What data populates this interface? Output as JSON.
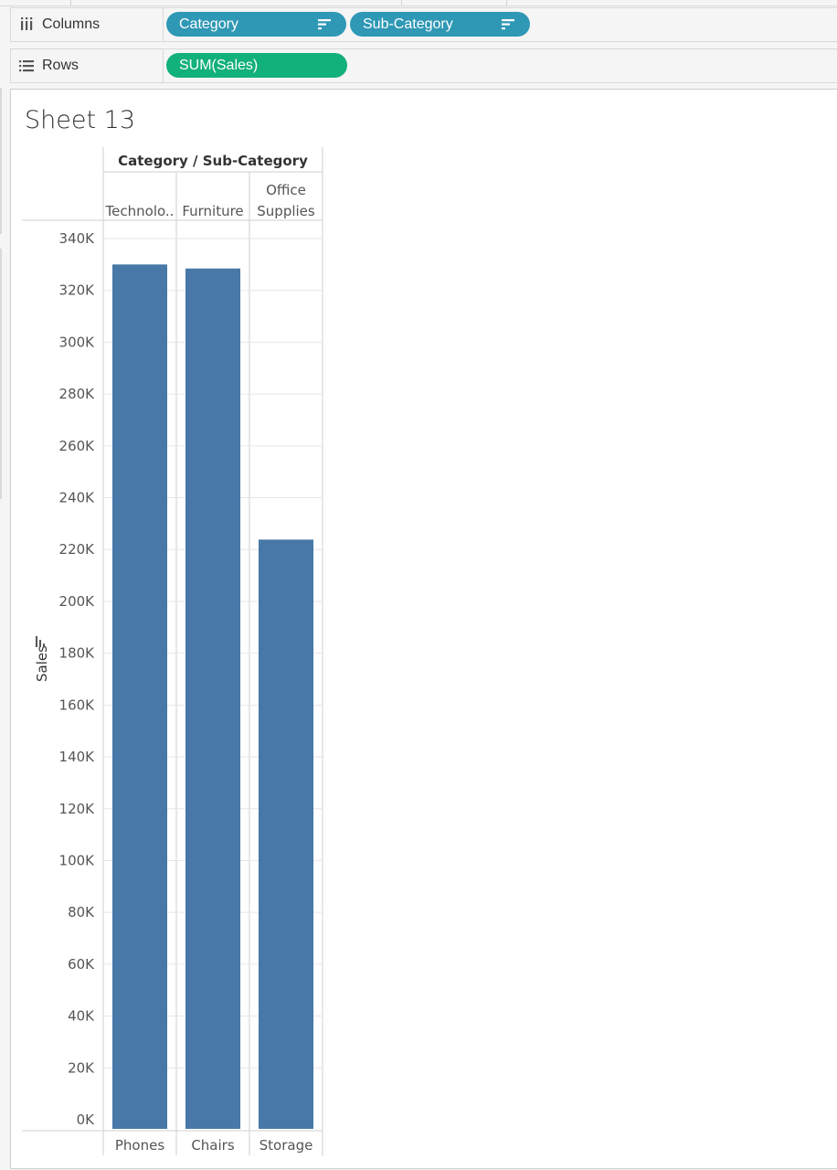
{
  "shelves": {
    "columns": {
      "label": "Columns",
      "icon": "columns-icon",
      "pills": [
        {
          "label": "Category",
          "icon": "sort-descending-icon"
        },
        {
          "label": "Sub-Category",
          "icon": "sort-descending-icon"
        }
      ]
    },
    "rows": {
      "label": "Rows",
      "icon": "rows-icon",
      "pills": [
        {
          "label": "SUM(Sales)"
        }
      ]
    }
  },
  "sheet": {
    "title": "Sheet 13"
  },
  "colors": {
    "bar": "#4778a8",
    "dimension_pill": "#2f98b5",
    "measure_pill": "#12b07a"
  },
  "chart_data": {
    "type": "bar",
    "header_title": "Category / Sub-Category",
    "categories": [
      "Technolo..",
      "Furniture",
      "Office Supplies"
    ],
    "sub_categories": [
      "Phones",
      "Chairs",
      "Storage"
    ],
    "values": [
      330007,
      328449,
      223844
    ],
    "ylabel": "Sales",
    "ylim": [
      0,
      340000
    ],
    "yticks": [
      0,
      20000,
      40000,
      60000,
      80000,
      100000,
      120000,
      140000,
      160000,
      180000,
      200000,
      220000,
      240000,
      260000,
      280000,
      300000,
      320000,
      340000
    ],
    "ytick_labels": [
      "0K",
      "20K",
      "40K",
      "60K",
      "80K",
      "100K",
      "120K",
      "140K",
      "160K",
      "180K",
      "200K",
      "220K",
      "240K",
      "260K",
      "280K",
      "300K",
      "320K",
      "340K"
    ],
    "grid": true,
    "legend": "none"
  }
}
